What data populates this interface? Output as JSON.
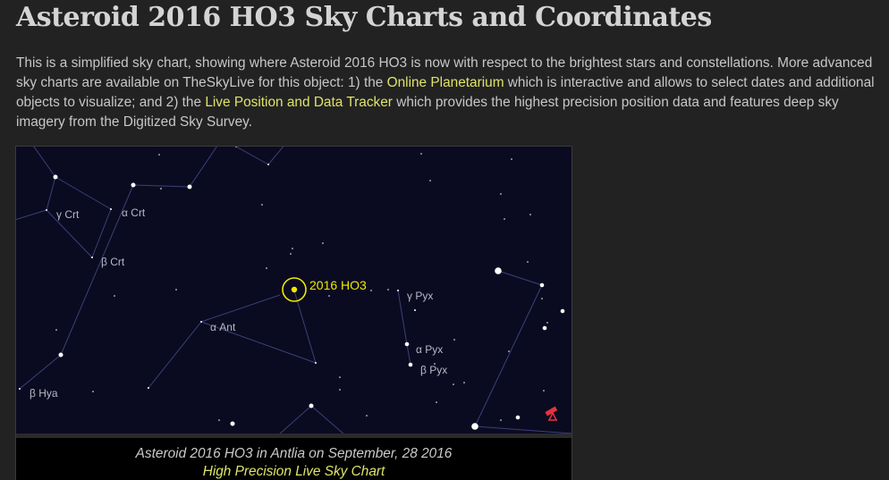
{
  "title": "Asteroid 2016 HO3 Sky Charts and Coordinates",
  "intro": {
    "part1": "This is a simplified sky chart, showing where Asteroid 2016 HO3 is now with respect to the brightest stars and constellations. More advanced sky charts are available on TheSkyLive for this object: 1) the ",
    "link1": "Online Planetarium",
    "part2": " which is interactive and allows to select dates and additional objects to visualize; and 2) the ",
    "link2": "Live Position and Data Tracker",
    "part3": " which provides the highest precision position data and features deep sky imagery from the Digitized Sky Survey."
  },
  "chart": {
    "object_label": "2016 HO3",
    "star_labels": [
      "γ Crt",
      "α Crt",
      "β Crt",
      "α Ant",
      "γ Pyx",
      "α Pyx",
      "β Pyx",
      "β Hya"
    ],
    "caption": "Asteroid 2016 HO3 in Antlia on September, 28 2016",
    "caption_link": "High Precision Live Sky Chart",
    "telescope_icon": "telescope-icon",
    "colors": {
      "sky": "#0a0b20",
      "object": "#f0e800",
      "link": "#dfe36a",
      "telescope": "#e8323c"
    }
  }
}
